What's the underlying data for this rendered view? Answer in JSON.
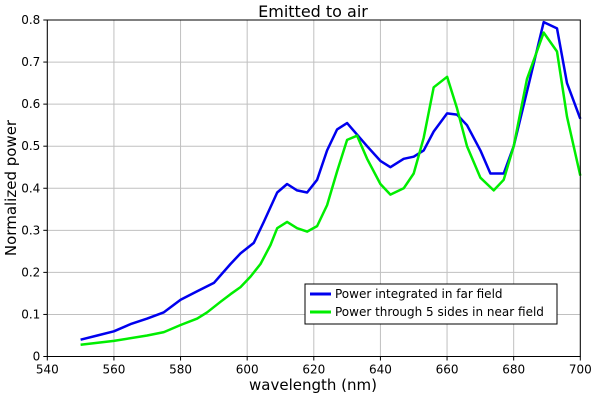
{
  "chart_data": {
    "type": "line",
    "title": "Emitted to air",
    "xlabel": "wavelength (nm)",
    "ylabel": "Normalized power",
    "xlim": [
      540,
      700
    ],
    "ylim": [
      0,
      0.8
    ],
    "xticks": [
      540,
      560,
      580,
      600,
      620,
      640,
      660,
      680,
      700
    ],
    "yticks": [
      "0",
      "0.1",
      "0.2",
      "0.3",
      "0.4",
      "0.5",
      "0.6",
      "0.7",
      "0.8"
    ],
    "grid": true,
    "legend_position": "bottom-right",
    "series": [
      {
        "name": "Power integrated in far field",
        "color": "#0000ee",
        "x": [
          550,
          555,
          560,
          565,
          570,
          575,
          580,
          585,
          590,
          595,
          598,
          602,
          605,
          609,
          612,
          615,
          618,
          621,
          624,
          627,
          630,
          636,
          640,
          643,
          647,
          650,
          653,
          656,
          660,
          663,
          666,
          670,
          673,
          677,
          680,
          684,
          689,
          693,
          696,
          700
        ],
        "y": [
          0.04,
          0.05,
          0.06,
          0.077,
          0.09,
          0.105,
          0.135,
          0.155,
          0.175,
          0.22,
          0.245,
          0.27,
          0.32,
          0.39,
          0.41,
          0.395,
          0.39,
          0.42,
          0.49,
          0.54,
          0.555,
          0.5,
          0.465,
          0.45,
          0.47,
          0.475,
          0.49,
          0.535,
          0.578,
          0.575,
          0.55,
          0.49,
          0.435,
          0.435,
          0.5,
          0.63,
          0.795,
          0.78,
          0.65,
          0.565
        ]
      },
      {
        "name": "Power through 5 sides in near field",
        "color": "#00ee00",
        "x": [
          550,
          560,
          570,
          575,
          580,
          585,
          588,
          592,
          595,
          598,
          601,
          604,
          607,
          609,
          612,
          615,
          618,
          621,
          624,
          627,
          630,
          633,
          636,
          640,
          643,
          647,
          650,
          653,
          656,
          660,
          663,
          666,
          670,
          674,
          677,
          680,
          684,
          689,
          693,
          696,
          700
        ],
        "y": [
          0.028,
          0.037,
          0.05,
          0.058,
          0.075,
          0.09,
          0.105,
          0.13,
          0.148,
          0.165,
          0.19,
          0.22,
          0.265,
          0.305,
          0.32,
          0.305,
          0.297,
          0.31,
          0.36,
          0.44,
          0.515,
          0.525,
          0.47,
          0.41,
          0.385,
          0.4,
          0.435,
          0.52,
          0.64,
          0.665,
          0.59,
          0.5,
          0.425,
          0.395,
          0.42,
          0.5,
          0.66,
          0.77,
          0.725,
          0.57,
          0.43
        ]
      }
    ]
  }
}
